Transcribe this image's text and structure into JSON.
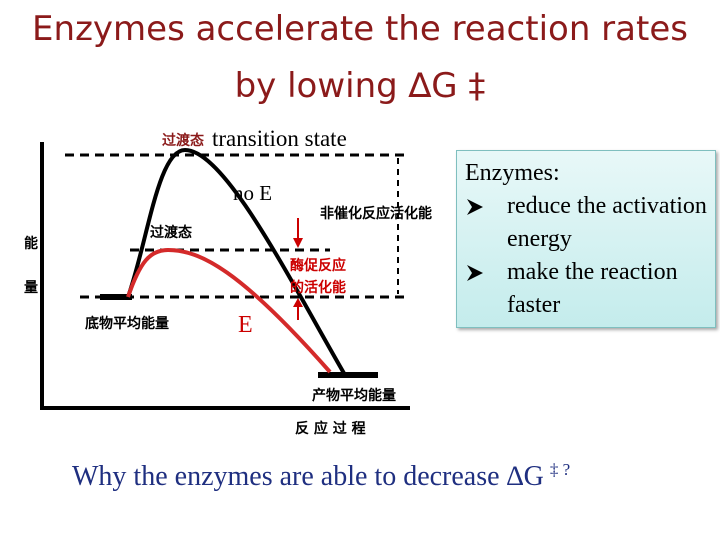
{
  "title": {
    "line1": "Enzymes accelerate the reaction rates",
    "line2": "by lowing ∆G ‡"
  },
  "diagram": {
    "transition_state_cn_top": "过渡态",
    "transition_state": "transition state",
    "no_enzyme": "no E",
    "transition_state_cn": "过渡态",
    "y_axis_label_1": "能",
    "y_axis_label_2": "量",
    "uncatalyzed_activation_energy": "非催化反应活化能",
    "enzyme_activation_energy_1": "酶促反应",
    "enzyme_activation_energy_2": "的活化能",
    "substrate_energy": "底物平均能量",
    "enzyme": "E",
    "product_energy": "产物平均能量",
    "x_axis_label": "反 应 过 程"
  },
  "box": {
    "heading": "Enzymes:",
    "bullets": [
      "reduce the activation energy",
      "make the reaction faster"
    ]
  },
  "question": {
    "text": "Why the enzymes are able to decrease ∆G",
    "superscript": "‡ ?"
  }
}
